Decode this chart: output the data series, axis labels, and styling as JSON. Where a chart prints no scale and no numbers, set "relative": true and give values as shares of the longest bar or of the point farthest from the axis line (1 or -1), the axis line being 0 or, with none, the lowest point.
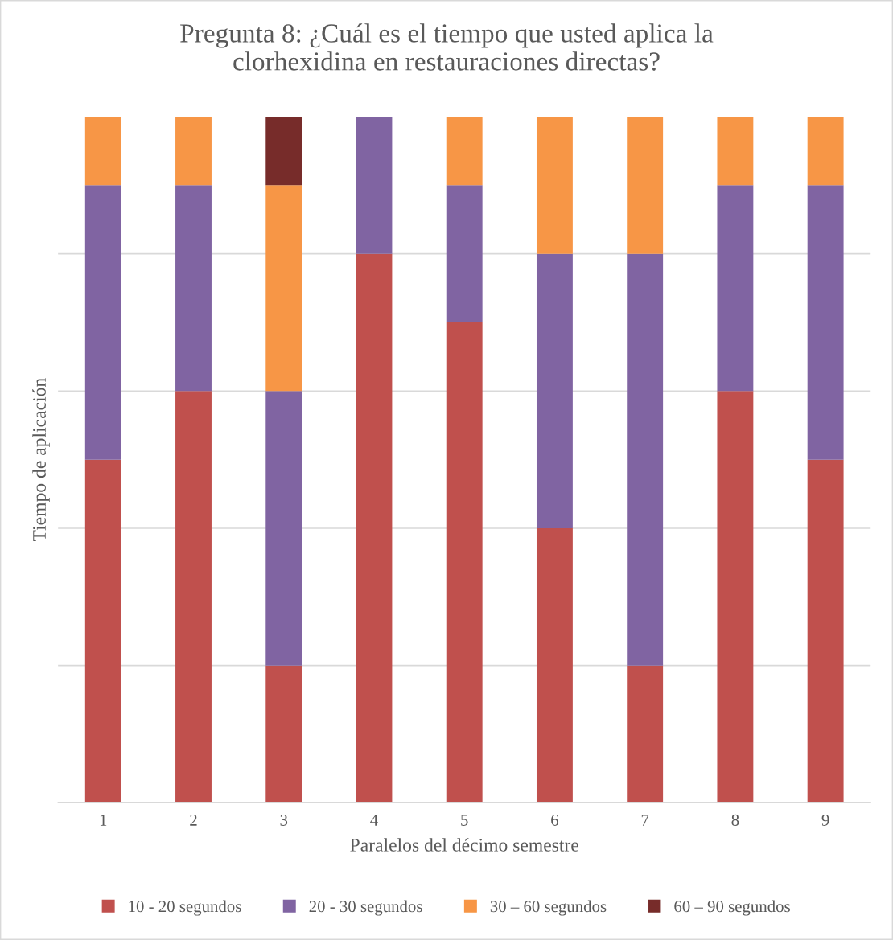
{
  "chart_data": {
    "type": "bar",
    "title": "Pregunta 8: ¿Cuál es el tiempo que usted aplica la\nclorhexidina en restauraciones directas?",
    "xlabel": "Paralelos del décimo semestre",
    "ylabel": "Tiempo de aplicación",
    "categories": [
      "1",
      "2",
      "3",
      "4",
      "5",
      "6",
      "7",
      "8",
      "9"
    ],
    "stacked": true,
    "relative": true,
    "grid": "y",
    "legend": "bottom",
    "series": [
      {
        "name": "10 - 20 segundos",
        "color": "#c0504d",
        "values": [
          0.5,
          0.6,
          0.2,
          0.8,
          0.7,
          0.4,
          0.2,
          0.6,
          0.5
        ]
      },
      {
        "name": "20 - 30 segundos",
        "color": "#8064a2",
        "values": [
          0.4,
          0.3,
          0.4,
          0.2,
          0.2,
          0.4,
          0.6,
          0.3,
          0.4
        ]
      },
      {
        "name": "30 – 60 segundos",
        "color": "#f79646",
        "values": [
          0.1,
          0.1,
          0.3,
          0,
          0.1,
          0.2,
          0.2,
          0.1,
          0.1
        ]
      },
      {
        "name": "60 – 90 segundos",
        "color": "#772c2a",
        "values": [
          0,
          0,
          0.1,
          0,
          0,
          0,
          0,
          0,
          0
        ]
      }
    ]
  }
}
